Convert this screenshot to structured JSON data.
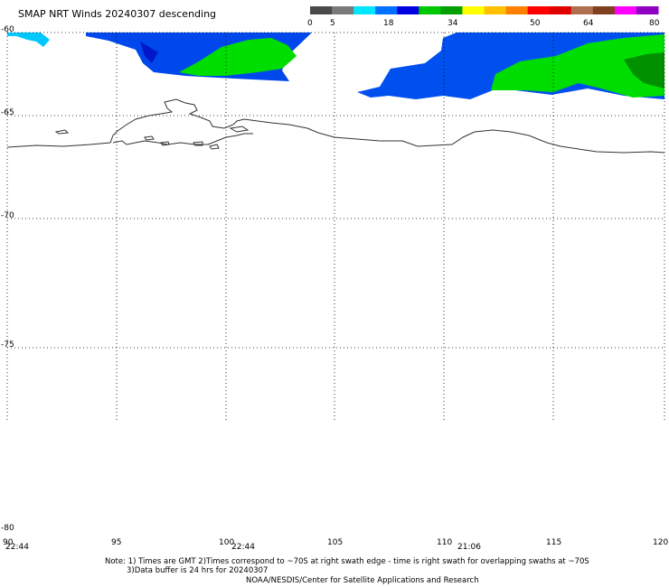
{
  "title": "SMAP NRT Winds  20240307 descending",
  "colorbar": {
    "labels": [
      "0",
      "5",
      "18",
      "34",
      "50",
      "64",
      "80"
    ],
    "segments": [
      "#4a4a4a",
      "#7a7a7a",
      "#00e6ff",
      "#0070ff",
      "#0000e0",
      "#00c800",
      "#00a000",
      "#ffff00",
      "#ffc000",
      "#ff8000",
      "#ff0000",
      "#e00000",
      "#b07050",
      "#804020",
      "#ff00ff",
      "#9000c0"
    ]
  },
  "lat_labels": [
    "-60",
    "-65",
    "-70",
    "-75",
    "-80"
  ],
  "lon_labels": [
    "90",
    "95",
    "100",
    "105",
    "110",
    "115",
    "120"
  ],
  "time_labels": [
    "22:44",
    "22:44",
    "21:06"
  ],
  "notes": {
    "line1": "Note: 1) Times are GMT 2)Times correspond to ~70S at right swath edge - time is right swath for overlapping swaths at ~70S",
    "line2": "3)Data buffer is 24 hrs for 20240307",
    "line3": "NOAA/NESDIS/Center for Satellite Applications and Research"
  },
  "colors": {
    "cyan": "#00c8ff",
    "blue": "#0050f0",
    "darkblue": "#0028d8",
    "green": "#00dc00",
    "darkgreen": "#00a000",
    "coast": "#333333",
    "grid": "#000000"
  }
}
